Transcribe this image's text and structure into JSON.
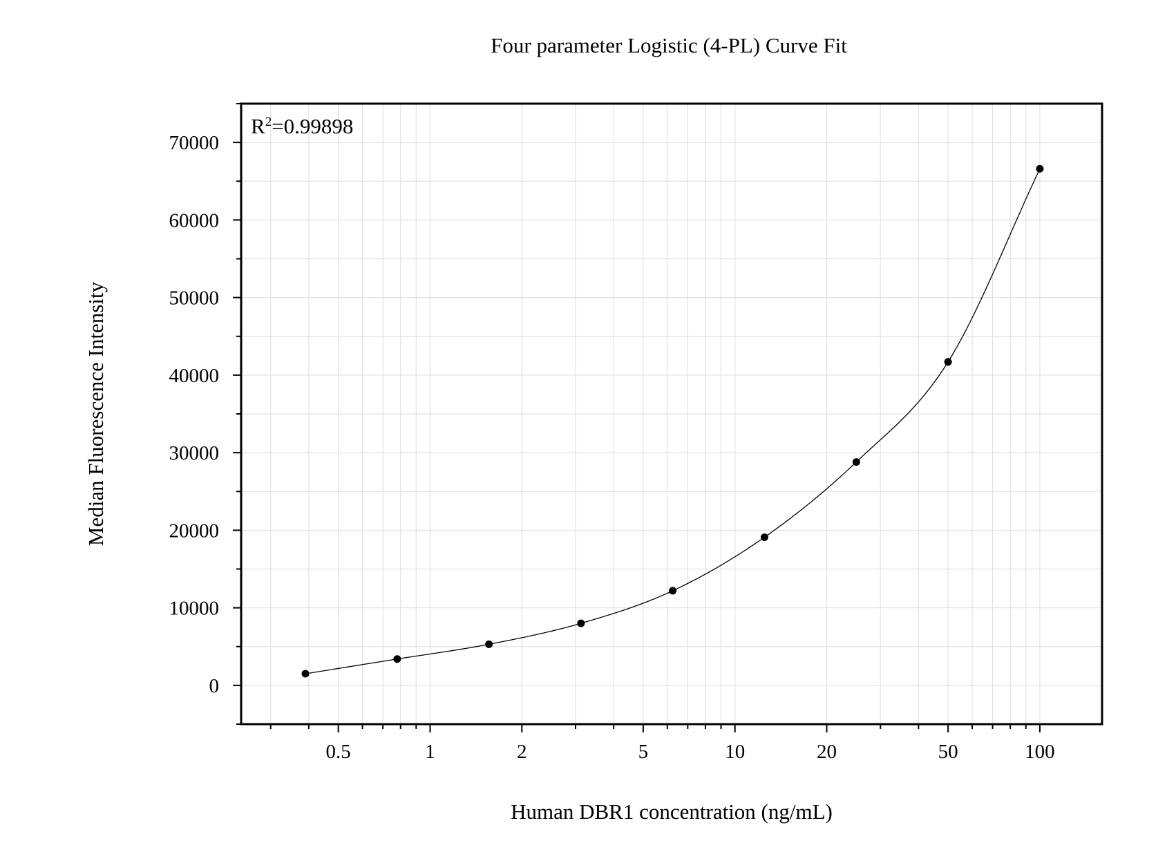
{
  "chart_data": {
    "type": "scatter",
    "title": "Four parameter Logistic (4-PL) Curve Fit",
    "xlabel": "Human DBR1 concentration (ng/mL)",
    "ylabel": "Median Fluorescence Intensity",
    "annotation": {
      "base": "R",
      "sup": "2",
      "value": "=0.99898"
    },
    "x_scale": "log",
    "xlim": [
      0.24,
      160
    ],
    "ylim": [
      -5000,
      75000
    ],
    "x_ticks": [
      0.5,
      1,
      2,
      5,
      10,
      20,
      50,
      100
    ],
    "x_tick_labels": [
      "0.5",
      "1",
      "2",
      "5",
      "10",
      "20",
      "50",
      "100"
    ],
    "y_ticks": [
      0,
      10000,
      20000,
      30000,
      40000,
      50000,
      60000,
      70000
    ],
    "y_tick_labels": [
      "0",
      "10000",
      "20000",
      "30000",
      "40000",
      "50000",
      "60000",
      "70000"
    ],
    "grid": true,
    "series": [
      {
        "x": [
          0.39,
          0.78,
          1.56,
          3.125,
          6.25,
          12.5,
          25,
          50,
          100
        ],
        "y": [
          1500,
          3400,
          5300,
          8000,
          12200,
          19100,
          28800,
          41700,
          66600
        ],
        "marker": "filled-circle",
        "color": "#000000"
      }
    ],
    "fit": {
      "model": "4PL",
      "x_range": [
        0.39,
        100
      ],
      "color": "#000000"
    }
  }
}
